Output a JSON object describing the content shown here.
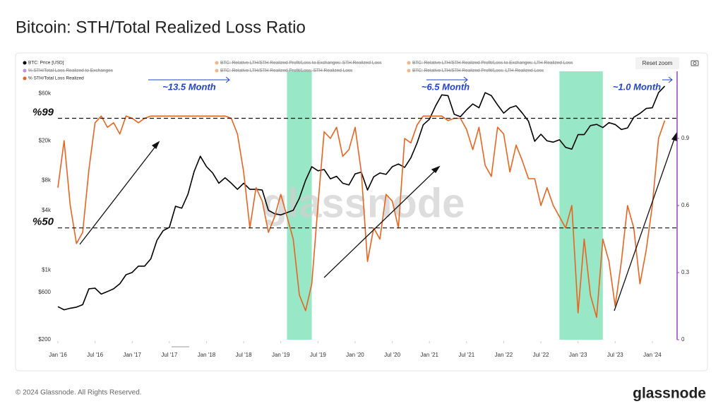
{
  "title": "Bitcoin: STH/Total Realized Loss Ratio",
  "footer": "© 2024 Glassnode. All Rights Reserved.",
  "logo": "glassnode",
  "reset_zoom": "Reset zoom",
  "chart_data": {
    "type": "line",
    "watermark": "glassnode",
    "x": [
      "2016-01",
      "2016-02",
      "2016-03",
      "2016-04",
      "2016-05",
      "2016-06",
      "2016-07",
      "2016-08",
      "2016-09",
      "2016-10",
      "2016-11",
      "2016-12",
      "2017-01",
      "2017-02",
      "2017-03",
      "2017-04",
      "2017-05",
      "2017-06",
      "2017-07",
      "2017-08",
      "2017-09",
      "2017-10",
      "2017-11",
      "2017-12",
      "2018-01",
      "2018-02",
      "2018-03",
      "2018-04",
      "2018-05",
      "2018-06",
      "2018-07",
      "2018-08",
      "2018-09",
      "2018-10",
      "2018-11",
      "2018-12",
      "2019-01",
      "2019-02",
      "2019-03",
      "2019-04",
      "2019-05",
      "2019-06",
      "2019-07",
      "2019-08",
      "2019-09",
      "2019-10",
      "2019-11",
      "2019-12",
      "2020-01",
      "2020-02",
      "2020-03",
      "2020-04",
      "2020-05",
      "2020-06",
      "2020-07",
      "2020-08",
      "2020-09",
      "2020-10",
      "2020-11",
      "2020-12",
      "2021-01",
      "2021-02",
      "2021-03",
      "2021-04",
      "2021-05",
      "2021-06",
      "2021-07",
      "2021-08",
      "2021-09",
      "2021-10",
      "2021-11",
      "2021-12",
      "2022-01",
      "2022-02",
      "2022-03",
      "2022-04",
      "2022-05",
      "2022-06",
      "2022-07",
      "2022-08",
      "2022-09",
      "2022-10",
      "2022-11",
      "2022-12",
      "2023-01",
      "2023-02",
      "2023-03",
      "2023-04",
      "2023-05",
      "2023-06",
      "2023-07",
      "2023-08",
      "2023-09",
      "2023-10",
      "2023-11",
      "2023-12",
      "2024-01",
      "2024-02",
      "2024-03"
    ],
    "series": [
      {
        "name": "BTC: Price [USD]",
        "color": "#000000",
        "values": [
          430,
          400,
          415,
          425,
          450,
          650,
          660,
          575,
          610,
          650,
          730,
          900,
          950,
          1100,
          1100,
          1300,
          2000,
          2500,
          2700,
          4400,
          4200,
          5800,
          9800,
          14000,
          11000,
          9500,
          7500,
          8500,
          7500,
          6500,
          7500,
          6500,
          6500,
          6400,
          4000,
          3700,
          3600,
          3800,
          4000,
          5300,
          8000,
          11000,
          10000,
          10300,
          8300,
          8800,
          7500,
          7200,
          9300,
          9700,
          6400,
          8700,
          9500,
          9200,
          11000,
          11700,
          10800,
          13500,
          19000,
          29000,
          33000,
          45000,
          58000,
          57000,
          37000,
          35000,
          41000,
          47000,
          43000,
          61000,
          57000,
          46000,
          38000,
          43000,
          45000,
          38000,
          31500,
          19800,
          23300,
          20000,
          19400,
          20500,
          17200,
          16500,
          23100,
          23100,
          28500,
          29300,
          27200,
          30500,
          29200,
          26000,
          27000,
          34500,
          37700,
          42300,
          43000,
          61000,
          71000
        ]
      },
      {
        "name": "% STH/Total Loss Realized",
        "color": "#e8641f",
        "axis": "y2",
        "values": [
          0.68,
          0.89,
          0.6,
          0.43,
          0.48,
          0.76,
          0.97,
          1.0,
          0.95,
          0.97,
          0.92,
          1.0,
          0.99,
          0.97,
          0.99,
          1.0,
          1.0,
          1.0,
          1.0,
          1.0,
          1.0,
          1.0,
          1.0,
          1.0,
          1.0,
          1.0,
          1.0,
          1.0,
          0.99,
          0.92,
          0.75,
          0.5,
          0.68,
          0.62,
          0.48,
          0.55,
          0.65,
          0.55,
          0.45,
          0.2,
          0.13,
          0.25,
          0.6,
          0.93,
          0.9,
          0.95,
          0.82,
          0.85,
          0.95,
          0.75,
          0.35,
          0.5,
          0.45,
          0.65,
          0.62,
          0.5,
          0.9,
          0.88,
          0.96,
          1.0,
          1.0,
          1.0,
          1.0,
          0.98,
          0.99,
          0.99,
          0.94,
          0.85,
          0.95,
          0.78,
          0.73,
          0.95,
          0.92,
          0.75,
          0.87,
          0.8,
          0.72,
          0.72,
          0.6,
          0.68,
          0.6,
          0.55,
          0.5,
          0.6,
          0.12,
          0.45,
          0.2,
          0.1,
          0.45,
          0.35,
          0.15,
          0.35,
          0.6,
          0.5,
          0.25,
          0.4,
          0.6,
          0.9,
          0.98
        ]
      }
    ],
    "hidden_series": [
      {
        "name": "BTC: Relative LTH/STH Realized Profit/Loss to Exchanges: STH Realized Loss",
        "color": "#e8833a"
      },
      {
        "name": "BTC: Relative LTH/STH Realized Profit/Loss to Exchanges: LTH Realized Loss",
        "color": "#e8833a"
      },
      {
        "name": "% STH/Total Loss Realized to Exchanges",
        "color": "#9b3fd1"
      },
      {
        "name": "BTC: Relative LTH/STH Realized Profit/Loss: STH Realized Loss",
        "color": "#e8833a"
      },
      {
        "name": "BTC: Relative LTH/STH Realized Profit/Loss: LTH Realized Loss",
        "color": "#e8833a"
      }
    ],
    "xlim": [
      "2016-01",
      "2024-05"
    ],
    "xticks": [
      {
        "value": "2016-01",
        "label": "Jan '16"
      },
      {
        "value": "2016-07",
        "label": "Jul '16"
      },
      {
        "value": "2017-01",
        "label": "Jan '17"
      },
      {
        "value": "2017-07",
        "label": "Jul '17"
      },
      {
        "value": "2018-01",
        "label": "Jan '18"
      },
      {
        "value": "2018-07",
        "label": "Jul '18"
      },
      {
        "value": "2019-01",
        "label": "Jan '19"
      },
      {
        "value": "2019-07",
        "label": "Jul '19"
      },
      {
        "value": "2020-01",
        "label": "Jan '20"
      },
      {
        "value": "2020-07",
        "label": "Jul '20"
      },
      {
        "value": "2021-01",
        "label": "Jan '21"
      },
      {
        "value": "2021-07",
        "label": "Jul '21"
      },
      {
        "value": "2022-01",
        "label": "Jan '22"
      },
      {
        "value": "2022-07",
        "label": "Jul '22"
      },
      {
        "value": "2023-01",
        "label": "Jan '23"
      },
      {
        "value": "2023-07",
        "label": "Jul '23"
      },
      {
        "value": "2024-01",
        "label": "Jan '24"
      }
    ],
    "ylim": [
      200,
      100000
    ],
    "log_y": true,
    "yticks": [
      {
        "value": 200,
        "label": "$200"
      },
      {
        "value": 600,
        "label": "$600"
      },
      {
        "value": 1000,
        "label": "$1k"
      },
      {
        "value": 4000,
        "label": "$4k"
      },
      {
        "value": 8000,
        "label": "$8k"
      },
      {
        "value": 20000,
        "label": "$20k"
      },
      {
        "value": 60000,
        "label": "$60k"
      }
    ],
    "y2lim": [
      0,
      1.2
    ],
    "y2ticks": [
      0,
      0.3,
      0.6,
      0.9
    ],
    "reference_lines": [
      {
        "label": "%99",
        "value": 0.99
      },
      {
        "label": "%50",
        "value": 0.5
      }
    ],
    "shaded_ranges": [
      [
        "2019-02",
        "2019-06"
      ],
      [
        "2022-10",
        "2023-05"
      ]
    ],
    "annotations": [
      "~13.5 Month",
      "~6.5 Month",
      "~1.0 Month"
    ]
  }
}
